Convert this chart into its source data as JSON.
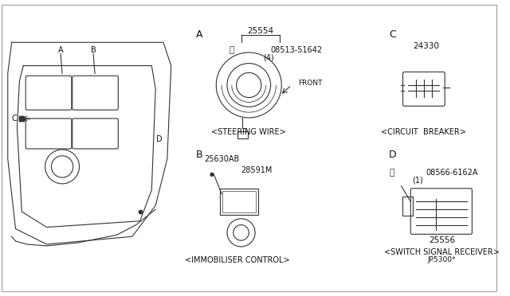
{
  "bg_color": "#ffffff",
  "border_color": "#000000",
  "line_color": "#333333",
  "title": "",
  "parts": {
    "A_label": "A",
    "A_part_num": "25554",
    "A_bolt_num": "08513-51642",
    "A_bolt_qty": "(4)",
    "A_caption": "<STEERING WIRE>",
    "A_front": "FRONT",
    "B_label": "B",
    "B_part_num1": "25630AB",
    "B_part_num2": "28591M",
    "B_caption": "<IMMOBILISER CONTROL>",
    "C_label": "C",
    "C_part_num": "24330",
    "C_caption": "<CIRCUIT  BREAKER>",
    "D_label": "D",
    "D_bolt_num": "08566-6162A",
    "D_bolt_qty": "(1)",
    "D_part_num": "25556",
    "D_caption": "<SWITCH SIGNAL RECEIVER>",
    "D_suffix": "JP5300*"
  },
  "figsize": [
    6.4,
    3.72
  ],
  "dpi": 100
}
